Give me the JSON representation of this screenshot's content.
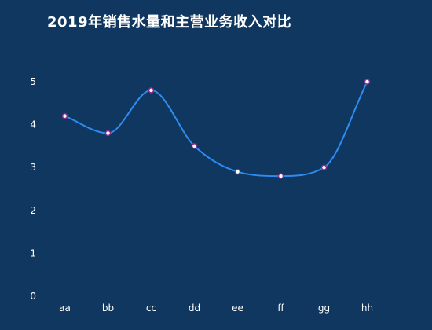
{
  "chart_data": {
    "type": "line",
    "title": "2019年销售水量和主营业务收入对比",
    "xlabel": "",
    "ylabel": "",
    "categories": [
      "aa",
      "bb",
      "cc",
      "dd",
      "ee",
      "ff",
      "gg",
      "hh"
    ],
    "series": [
      {
        "values": [
          4.2,
          3.8,
          4.8,
          3.5,
          2.9,
          2.8,
          3.0,
          5.0
        ]
      }
    ],
    "ylim": [
      0,
      5
    ],
    "yticks": [
      "0",
      "1",
      "2",
      "3",
      "4",
      "5"
    ],
    "smooth": true,
    "grid": false,
    "legend": "none",
    "colors": {
      "background": "#0f375f",
      "line": "#2e8cf0",
      "drop_line": "#3c82e6",
      "marker_fill": "#ffffff",
      "marker_stroke": "#8c2d8c",
      "text": "#ffffff"
    }
  }
}
